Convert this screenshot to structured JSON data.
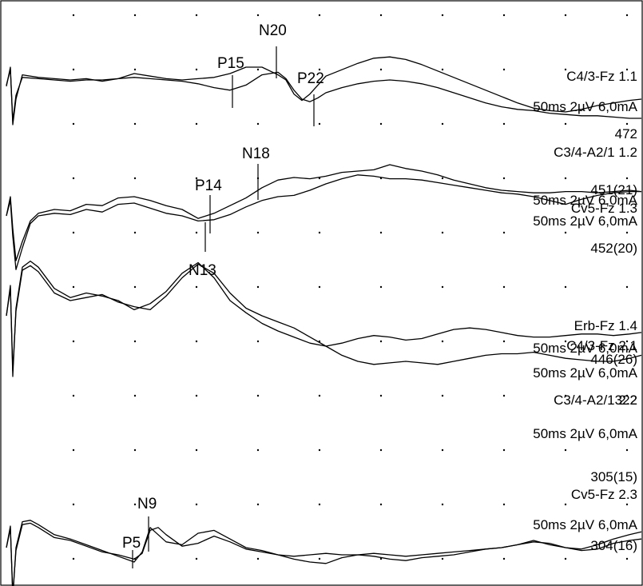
{
  "chart_data": {
    "type": "line",
    "grid": "on",
    "panels": [
      {
        "peaks": [
          "P15",
          "N20",
          "P22",
          "N18",
          "P14"
        ],
        "channels": [
          {
            "lines": [
              "C4/3-Fz 1.1",
              "50ms 2µV 6,0mA",
              "472"
            ]
          },
          {
            "lines": [
              "C3/4-A2/1 1.2",
              "50ms 2µV 6,0mA",
              "451(21)"
            ]
          },
          {
            "lines": [
              "Cv5-Fz 1.3",
              "50ms 2µV 6,0mA",
              "452(20)"
            ]
          }
        ],
        "series": [
          {
            "x": [
              0,
              5,
              8,
              12,
              20,
              40,
              60,
              80,
              100,
              120,
              140,
              160,
              180,
              200,
              220,
              240,
              260,
              280,
              300,
              320,
              340,
              350,
              360,
              370,
              380,
              390,
              400,
              420,
              440,
              460,
              480,
              500,
              520,
              540,
              560,
              580,
              600,
              620,
              640,
              660,
              680,
              700,
              720,
              740,
              760,
              780,
              795
            ],
            "y": [
              -0.5,
              1.0,
              -3.5,
              -1.5,
              0.4,
              0.2,
              0.1,
              0.0,
              0.1,
              -0.1,
              0.1,
              0.5,
              0.3,
              0.1,
              0.0,
              0.1,
              0.2,
              0.5,
              1.0,
              1.0,
              0.4,
              0.0,
              -1.1,
              -1.6,
              -1.1,
              -0.4,
              0.3,
              0.8,
              1.3,
              1.7,
              1.8,
              1.6,
              1.2,
              0.7,
              0.2,
              -0.3,
              -0.8,
              -1.3,
              -1.8,
              -2.2,
              -2.4,
              -2.5,
              -2.3,
              -2.0,
              -1.8,
              -1.6,
              -1.5
            ]
          },
          {
            "x": [
              0,
              5,
              8,
              12,
              20,
              40,
              60,
              80,
              100,
              120,
              140,
              160,
              180,
              200,
              220,
              240,
              260,
              280,
              300,
              320,
              340,
              350,
              360,
              370,
              380,
              390,
              400,
              420,
              440,
              460,
              480,
              500,
              520,
              540,
              560,
              580,
              600,
              620,
              640,
              660,
              680,
              700,
              720,
              740,
              760,
              780,
              795
            ],
            "y": [
              -0.4,
              0.8,
              -3.2,
              -1.2,
              0.2,
              0.1,
              0.0,
              -0.1,
              0.0,
              0.0,
              0.1,
              0.2,
              0.1,
              0.0,
              -0.1,
              -0.3,
              -0.6,
              -0.8,
              -0.4,
              0.4,
              0.6,
              0.1,
              -0.8,
              -1.5,
              -1.7,
              -1.4,
              -1.0,
              -0.6,
              -0.3,
              -0.1,
              0.0,
              -0.1,
              -0.3,
              -0.6,
              -1.0,
              -1.4,
              -1.8,
              -2.1,
              -2.3,
              -2.4,
              -2.6,
              -2.7,
              -2.8,
              -2.8,
              -2.9,
              -3.0,
              -3.0
            ]
          },
          {
            "x": [
              0,
              5,
              8,
              12,
              20,
              30,
              40,
              60,
              80,
              100,
              120,
              140,
              160,
              180,
              200,
              220,
              240,
              260,
              280,
              300,
              320,
              340,
              360,
              380,
              400,
              420,
              440,
              460,
              480,
              500,
              520,
              540,
              560,
              580,
              600,
              620,
              640,
              660,
              680,
              700,
              720,
              740,
              760,
              780,
              795
            ],
            "y": [
              0.0,
              1.5,
              -1.0,
              -3.5,
              -2.0,
              -0.4,
              0.2,
              0.5,
              0.4,
              0.9,
              0.8,
              1.4,
              1.5,
              1.2,
              0.8,
              0.5,
              -0.2,
              0.2,
              0.8,
              1.4,
              2.2,
              2.8,
              3.0,
              2.9,
              3.1,
              3.4,
              3.5,
              3.6,
              4.0,
              3.7,
              3.5,
              3.2,
              2.8,
              2.5,
              2.2,
              2.0,
              1.9,
              1.8,
              1.8,
              1.9,
              1.9,
              1.8,
              1.9,
              2.0,
              1.9
            ]
          },
          {
            "x": [
              0,
              5,
              8,
              12,
              20,
              30,
              40,
              60,
              80,
              100,
              120,
              140,
              160,
              180,
              200,
              220,
              240,
              260,
              280,
              300,
              320,
              340,
              360,
              380,
              400,
              420,
              440,
              460,
              480,
              500,
              520,
              540,
              560,
              580,
              600,
              620,
              640,
              660,
              680,
              700,
              720,
              740,
              760,
              780,
              795
            ],
            "y": [
              0.0,
              1.2,
              -1.6,
              -4.2,
              -2.5,
              -0.6,
              0.0,
              0.2,
              0.1,
              0.5,
              0.3,
              0.9,
              1.0,
              0.6,
              0.2,
              0.0,
              -0.4,
              -0.3,
              0.1,
              0.7,
              1.2,
              1.5,
              1.6,
              2.0,
              2.5,
              2.9,
              3.2,
              3.1,
              2.9,
              2.9,
              2.8,
              2.6,
              2.4,
              2.2,
              2.0,
              1.8,
              1.7,
              1.5,
              1.2,
              0.9,
              1.3,
              1.6,
              1.8,
              1.9,
              1.9
            ]
          }
        ]
      },
      {
        "peaks": [
          "N13"
        ],
        "channels": [
          {
            "lines": [
              "Erb-Fz 1.4",
              "50ms 2µV 6,0mA",
              "446(26)"
            ]
          },
          {
            "lines": [
              "C4/3-Fz 2.1",
              "50ms 2µV 6,0mA",
              "322"
            ]
          },
          {
            "lines": [
              "C3/4-A2/1 2.2",
              "50ms 2µV 6,0mA",
              "305(15)"
            ]
          }
        ],
        "series": [
          {
            "x": [
              0,
              5,
              8,
              12,
              20,
              30,
              40,
              60,
              80,
              100,
              120,
              140,
              160,
              180,
              200,
              220,
              240,
              260,
              280,
              300,
              320,
              340,
              360,
              380,
              400,
              420,
              440,
              460,
              480,
              500,
              520,
              540,
              560,
              580,
              600,
              620,
              640,
              660,
              680,
              700,
              720,
              740,
              760,
              780,
              795
            ],
            "y": [
              0.0,
              2.0,
              -4.0,
              0.5,
              3.2,
              3.6,
              3.2,
              1.8,
              1.2,
              1.5,
              1.3,
              1.0,
              0.4,
              0.8,
              1.6,
              2.8,
              3.5,
              2.5,
              1.0,
              0.2,
              -0.5,
              -1.0,
              -1.4,
              -1.8,
              -2.0,
              -1.8,
              -1.5,
              -1.3,
              -1.4,
              -1.6,
              -1.5,
              -1.2,
              -0.9,
              -0.8,
              -0.9,
              -1.1,
              -1.3,
              -1.4,
              -1.4,
              -1.3,
              -1.2,
              -1.2,
              -1.3,
              -1.2,
              -1.1
            ]
          },
          {
            "x": [
              0,
              5,
              8,
              12,
              20,
              30,
              40,
              60,
              80,
              100,
              120,
              140,
              160,
              180,
              200,
              220,
              240,
              260,
              280,
              300,
              320,
              340,
              360,
              380,
              400,
              420,
              440,
              460,
              480,
              500,
              520,
              540,
              560,
              580,
              600,
              620,
              640,
              660,
              680,
              700,
              720,
              740,
              760,
              780,
              795
            ],
            "y": [
              0.0,
              1.8,
              -3.6,
              0.3,
              3.0,
              3.3,
              2.9,
              1.5,
              1.0,
              1.2,
              1.4,
              0.9,
              0.6,
              0.4,
              1.3,
              2.5,
              3.4,
              2.8,
              1.5,
              0.5,
              0.0,
              -0.4,
              -0.8,
              -1.4,
              -2.0,
              -2.6,
              -3.0,
              -3.2,
              -3.1,
              -3.0,
              -3.1,
              -3.2,
              -3.0,
              -2.8,
              -2.6,
              -2.5,
              -2.5,
              -2.4,
              -2.6,
              -2.8,
              -2.9,
              -3.0,
              -3.0,
              -2.8,
              -2.6
            ]
          }
        ]
      },
      {
        "peaks": [
          "N9",
          "P5"
        ],
        "channels": [
          {
            "lines": [
              "Cv5-Fz 2.3",
              "50ms 2µV 6,0mA",
              "304(16)"
            ]
          }
        ],
        "series": [
          {
            "x": [
              0,
              5,
              8,
              12,
              20,
              30,
              40,
              60,
              80,
              100,
              120,
              140,
              160,
              170,
              180,
              190,
              200,
              220,
              240,
              260,
              280,
              300,
              320,
              340,
              360,
              380,
              400,
              420,
              440,
              460,
              480,
              500,
              520,
              540,
              560,
              580,
              600,
              620,
              640,
              660,
              680,
              700,
              720,
              740,
              760,
              780,
              795
            ],
            "y": [
              0.0,
              1.5,
              -3.5,
              0.0,
              1.8,
              1.9,
              1.6,
              0.9,
              0.6,
              0.2,
              -0.2,
              -0.6,
              -1.0,
              -0.3,
              1.4,
              0.9,
              0.4,
              0.2,
              1.0,
              1.2,
              0.6,
              0.0,
              -0.2,
              -0.5,
              -0.8,
              -1.0,
              -1.1,
              -0.7,
              -0.5,
              -0.6,
              -0.8,
              -0.9,
              -0.7,
              -0.6,
              -0.5,
              -0.3,
              -0.1,
              0.0,
              0.2,
              0.5,
              0.2,
              0.0,
              -0.2,
              -0.1,
              0.3,
              0.5,
              0.6
            ]
          },
          {
            "x": [
              0,
              5,
              8,
              12,
              20,
              30,
              40,
              60,
              80,
              100,
              120,
              140,
              160,
              170,
              180,
              190,
              200,
              220,
              240,
              260,
              280,
              300,
              320,
              340,
              360,
              380,
              400,
              420,
              440,
              460,
              480,
              500,
              520,
              540,
              560,
              580,
              600,
              620,
              640,
              660,
              680,
              700,
              720,
              740,
              760,
              780,
              795
            ],
            "y": [
              0.0,
              1.3,
              -3.2,
              -0.2,
              1.6,
              1.7,
              1.4,
              0.7,
              0.5,
              0.1,
              -0.3,
              -0.5,
              -0.8,
              -0.4,
              1.2,
              1.4,
              0.9,
              0.1,
              0.3,
              0.8,
              0.4,
              -0.1,
              -0.3,
              -0.5,
              -0.6,
              -0.5,
              -0.4,
              -0.5,
              -0.5,
              -0.4,
              -0.5,
              -0.6,
              -0.5,
              -0.4,
              -0.3,
              -0.2,
              -0.1,
              0.0,
              0.2,
              0.4,
              0.3,
              0.0,
              -0.1,
              0.2,
              0.6,
              0.9,
              1.1
            ]
          }
        ]
      }
    ]
  }
}
